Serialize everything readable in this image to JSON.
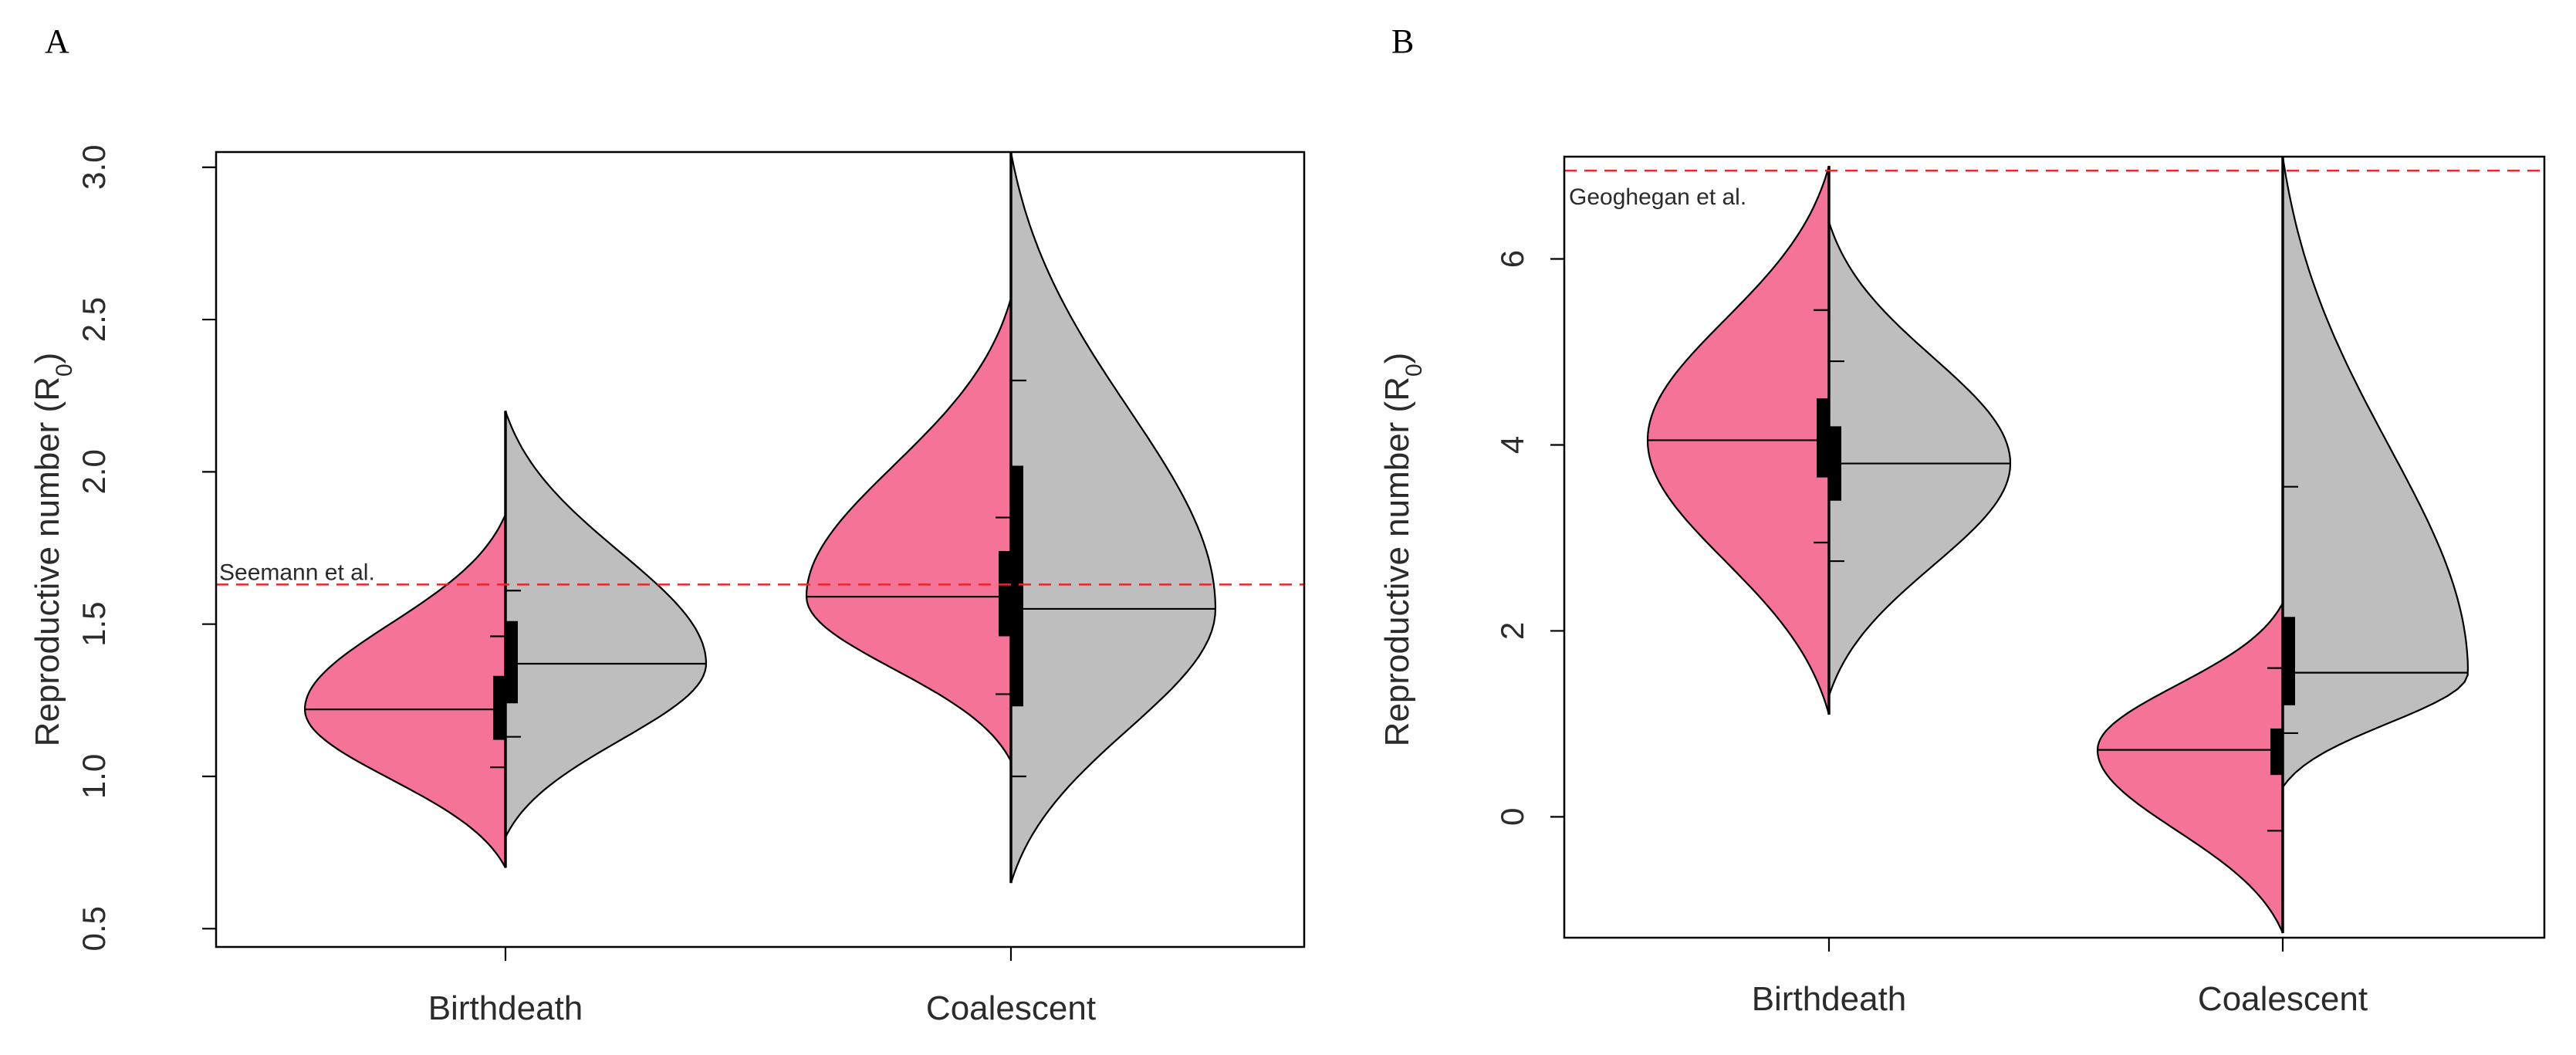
{
  "colors": {
    "birthdeath_fill": "#F47396",
    "coalescent_fill": "#BEBEBE",
    "reference_line": "#E8262E",
    "outline": "#000000"
  },
  "chart_data": [
    {
      "panel": "A",
      "type": "split-violin",
      "ylabel": "Reproductive number (R",
      "ylabel_sub": "0",
      "ylabel_close": ")",
      "ylim": [
        0.44,
        3.05
      ],
      "yticks": [
        "0.5",
        "1.0",
        "1.5",
        "2.0",
        "2.5",
        "3.0"
      ],
      "categories": [
        "Birthdeath",
        "Coalescent"
      ],
      "reference_line": {
        "value": 1.63,
        "label": "Seemann et al."
      },
      "violins": [
        {
          "category": "Birthdeath",
          "left": {
            "median": 1.22,
            "range": [
              0.7,
              1.86
            ],
            "box": [
              1.12,
              1.33
            ],
            "whisker": [
              1.03,
              1.46
            ]
          },
          "right": {
            "median": 1.37,
            "range": [
              0.8,
              2.2
            ],
            "box": [
              1.24,
              1.51
            ],
            "whisker": [
              1.13,
              1.61
            ]
          }
        },
        {
          "category": "Coalescent",
          "left": {
            "median": 1.59,
            "range": [
              1.05,
              2.57
            ],
            "box": [
              1.46,
              1.74
            ],
            "whisker": [
              1.27,
              1.85
            ]
          },
          "right": {
            "median": 1.55,
            "range": [
              0.65,
              3.05
            ],
            "box": [
              1.23,
              2.02
            ],
            "whisker": [
              1.0,
              2.3
            ]
          }
        }
      ]
    },
    {
      "panel": "B",
      "type": "split-violin",
      "ylabel": "Reproductive number (R",
      "ylabel_sub": "0",
      "ylabel_close": ")",
      "ylim": [
        -1.3,
        7.1
      ],
      "yticks": [
        "0",
        "2",
        "4",
        "6"
      ],
      "categories": [
        "Birthdeath",
        "Coalescent"
      ],
      "reference_line": {
        "value": 6.95,
        "label": "Geoghegan et al."
      },
      "violins": [
        {
          "category": "Birthdeath",
          "left": {
            "median": 4.05,
            "range": [
              1.1,
              7.0
            ],
            "box": [
              3.65,
              4.5
            ],
            "whisker": [
              2.95,
              5.45
            ]
          },
          "right": {
            "median": 3.8,
            "range": [
              1.3,
              6.4
            ],
            "box": [
              3.4,
              4.2
            ],
            "whisker": [
              2.75,
              4.9
            ]
          }
        },
        {
          "category": "Coalescent",
          "left": {
            "median": 0.72,
            "range": [
              -1.25,
              2.3
            ],
            "box": [
              0.45,
              0.95
            ],
            "whisker": [
              -0.15,
              1.6
            ]
          },
          "right": {
            "median": 1.55,
            "range": [
              0.32,
              7.1
            ],
            "box": [
              1.2,
              2.15
            ],
            "whisker": [
              0.9,
              3.55
            ]
          }
        }
      ]
    }
  ]
}
